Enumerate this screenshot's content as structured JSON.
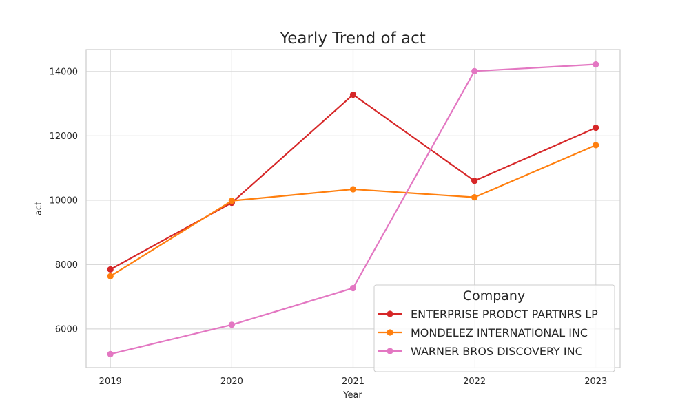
{
  "chart_data": {
    "type": "line",
    "title": "Yearly Trend of act",
    "xlabel": "Year",
    "ylabel": "act",
    "x": [
      2019,
      2020,
      2021,
      2022,
      2023
    ],
    "x_tick_labels": [
      "2019",
      "2020",
      "2021",
      "2022",
      "2023"
    ],
    "y_ticks": [
      6000,
      8000,
      10000,
      12000,
      14000
    ],
    "y_tick_labels": [
      "6000",
      "8000",
      "10000",
      "12000",
      "14000"
    ],
    "ylim": [
      4800,
      14680
    ],
    "xlim": [
      2018.8,
      2023.2
    ],
    "grid": true,
    "legend": {
      "title": "Company",
      "placement": "lower-right"
    },
    "series": [
      {
        "name": "ENTERPRISE PRODCT PARTNRS LP",
        "color": "#d62728",
        "values": [
          7850,
          9920,
          13280,
          10600,
          12250
        ]
      },
      {
        "name": "MONDELEZ INTERNATIONAL INC",
        "color": "#ff7f0e",
        "values": [
          7640,
          9980,
          10340,
          10090,
          11710
        ]
      },
      {
        "name": "WARNER BROS DISCOVERY INC",
        "color": "#e377c2",
        "values": [
          5220,
          6130,
          7270,
          14010,
          14220
        ]
      }
    ]
  }
}
